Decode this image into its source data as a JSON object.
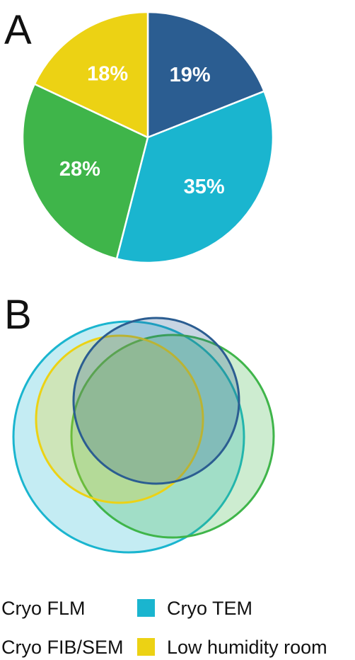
{
  "panels": {
    "a_letter": "A",
    "b_letter": "B"
  },
  "chart_data": [
    {
      "type": "pie",
      "title": "",
      "slices": [
        {
          "label": "19%",
          "value": 19,
          "color": "#2b5d91",
          "category": "Cryo FLM"
        },
        {
          "label": "35%",
          "value": 35,
          "color": "#1ab5cf",
          "category": "Cryo TEM"
        },
        {
          "label": "28%",
          "value": 28,
          "color": "#3fb54a",
          "category": "Cryo FIB/SEM"
        },
        {
          "label": "18%",
          "value": 18,
          "color": "#ecd214",
          "category": "Low humidity room"
        }
      ]
    },
    {
      "type": "venn",
      "title": "",
      "sets": [
        {
          "category": "Cryo TEM",
          "color": "#1ab5cf"
        },
        {
          "category": "Cryo FIB/SEM",
          "color": "#3fb54a"
        },
        {
          "category": "Low humidity room",
          "color": "#ecd214"
        },
        {
          "category": "Cryo FLM",
          "color": "#2b5d91"
        }
      ]
    }
  ],
  "legend": {
    "placement": "bottom",
    "items": [
      {
        "label": "Cryo FLM",
        "color": "#2b5d91"
      },
      {
        "label": "Cryo TEM",
        "color": "#1ab5cf"
      },
      {
        "label": "Cryo FIB/SEM",
        "color": "#3fb54a"
      },
      {
        "label": "Low humidity room",
        "color": "#ecd214"
      }
    ]
  }
}
